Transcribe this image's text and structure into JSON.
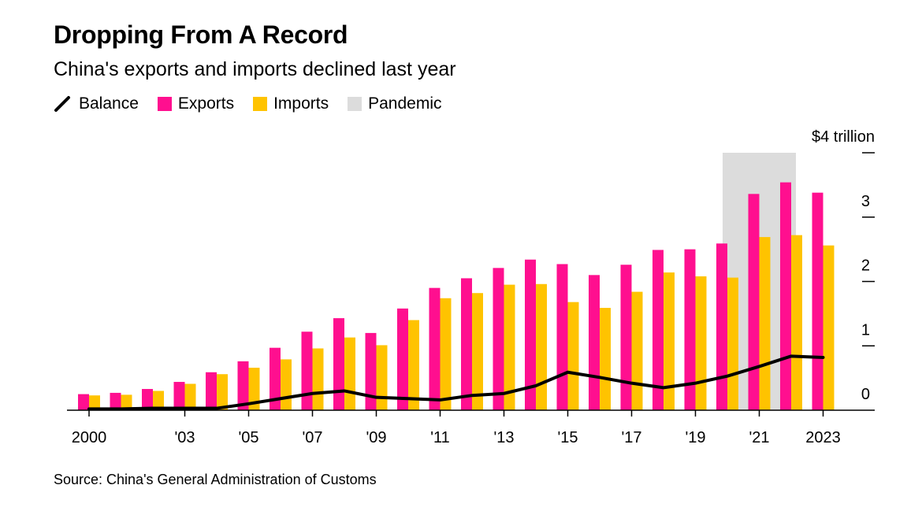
{
  "chart_data": {
    "type": "bar",
    "title": "Dropping From A Record",
    "subtitle": "China's exports and imports declined last year",
    "x": [
      2000,
      2001,
      2002,
      2003,
      2004,
      2005,
      2006,
      2007,
      2008,
      2009,
      2010,
      2011,
      2012,
      2013,
      2014,
      2015,
      2016,
      2017,
      2018,
      2019,
      2020,
      2021,
      2022,
      2023
    ],
    "series": [
      {
        "name": "Exports",
        "kind": "bar",
        "color": "#ff0f8f",
        "values": [
          0.25,
          0.27,
          0.33,
          0.44,
          0.59,
          0.76,
          0.97,
          1.22,
          1.43,
          1.2,
          1.58,
          1.9,
          2.05,
          2.21,
          2.34,
          2.27,
          2.1,
          2.26,
          2.49,
          2.5,
          2.59,
          3.36,
          3.54,
          3.38
        ]
      },
      {
        "name": "Imports",
        "kind": "bar",
        "color": "#ffc300",
        "values": [
          0.23,
          0.24,
          0.3,
          0.41,
          0.56,
          0.66,
          0.79,
          0.96,
          1.13,
          1.01,
          1.4,
          1.74,
          1.82,
          1.95,
          1.96,
          1.68,
          1.59,
          1.84,
          2.14,
          2.08,
          2.06,
          2.69,
          2.72,
          2.56
        ]
      },
      {
        "name": "Balance",
        "kind": "line",
        "color": "#000000",
        "values": [
          0.02,
          0.02,
          0.03,
          0.03,
          0.03,
          0.1,
          0.18,
          0.26,
          0.3,
          0.2,
          0.18,
          0.16,
          0.23,
          0.26,
          0.38,
          0.59,
          0.51,
          0.42,
          0.35,
          0.42,
          0.53,
          0.68,
          0.84,
          0.82
        ]
      }
    ],
    "highlight": {
      "name": "Pandemic",
      "color": "#dcdcdc",
      "from": 2020,
      "to": 2022
    },
    "legend": [
      "Balance",
      "Exports",
      "Imports",
      "Pandemic"
    ],
    "ylim": [
      0,
      4
    ],
    "yticks": [
      0,
      1,
      2,
      3,
      4
    ],
    "ytick_labels": [
      "0",
      "1",
      "2",
      "3",
      "$4 trillion"
    ],
    "xtick_labels": [
      {
        "year": 2000,
        "label": "2000"
      },
      {
        "year": 2003,
        "label": "'03"
      },
      {
        "year": 2005,
        "label": "'05"
      },
      {
        "year": 2007,
        "label": "'07"
      },
      {
        "year": 2009,
        "label": "'09"
      },
      {
        "year": 2011,
        "label": "'11"
      },
      {
        "year": 2013,
        "label": "'13"
      },
      {
        "year": 2015,
        "label": "'15"
      },
      {
        "year": 2017,
        "label": "'17"
      },
      {
        "year": 2019,
        "label": "'19"
      },
      {
        "year": 2021,
        "label": "'21"
      },
      {
        "year": 2023,
        "label": "2023"
      }
    ],
    "legend_placement": "top-left",
    "y_axis_side": "right",
    "grid": false
  },
  "legend_labels": {
    "balance": "Balance",
    "exports": "Exports",
    "imports": "Imports",
    "pandemic": "Pandemic"
  },
  "source": "Source: China's General Administration of Customs"
}
